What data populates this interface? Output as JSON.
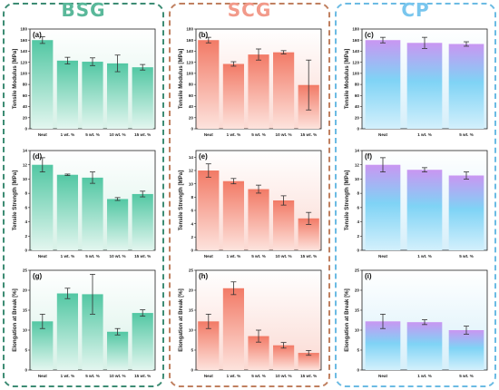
{
  "colors": {
    "bsg_bar_top": "#52c7a3",
    "bsg_bar_bottom": "#e3f6ef",
    "bsg_panel": "#d7f1e7",
    "bsg_frame": "#3d8c74",
    "bsg_title": "#5ab89a",
    "scg_bar_top": "#f27a66",
    "scg_bar_bottom": "#fde3dd",
    "scg_panel": "#fbd9d2",
    "scg_frame": "#c08060",
    "scg_title": "#f29a8a",
    "cp_bar_top": "#c996f2",
    "cp_bar_mid": "#7fd3f5",
    "cp_bar_bottom": "#d3f0fc",
    "cp_panel": "#d6effa",
    "cp_frame": "#6cbbe3",
    "cp_title": "#79c6ee"
  },
  "groups": [
    {
      "key": "bsg",
      "title": "BSG"
    },
    {
      "key": "scg",
      "title": "SCG"
    },
    {
      "key": "cp",
      "title": "CP"
    }
  ],
  "chart_data": [
    {
      "type": "bar",
      "panel_label": "(a)",
      "group": "bsg",
      "row": 0,
      "categories": [
        "Neat",
        "1 wt. %",
        "5 wt. %",
        "10 wt. %",
        "15 wt. %"
      ],
      "values": [
        160,
        123,
        121,
        118,
        111
      ],
      "errors": [
        6,
        6,
        7,
        15,
        5
      ],
      "ylabel": "Tensile Modulus [MPa]",
      "ylim": [
        0,
        180
      ],
      "yticks": [
        0,
        20,
        40,
        60,
        80,
        100,
        120,
        140,
        160,
        180
      ]
    },
    {
      "type": "bar",
      "panel_label": "(b)",
      "group": "scg",
      "row": 0,
      "categories": [
        "Neat",
        "1 wt. %",
        "5 wt. %",
        "10 wt. %",
        "15 wt. %"
      ],
      "values": [
        160,
        117,
        134,
        138,
        79
      ],
      "errors": [
        5,
        4,
        10,
        3,
        45
      ],
      "ylabel": "Tensile Modulus [MPa]",
      "ylim": [
        0,
        180
      ],
      "yticks": [
        0,
        20,
        40,
        60,
        80,
        100,
        120,
        140,
        160,
        180
      ]
    },
    {
      "type": "bar",
      "panel_label": "(c)",
      "group": "cp",
      "row": 0,
      "categories": [
        "Neat",
        "1 wt. %",
        "5 wt. %"
      ],
      "values": [
        160,
        155,
        153
      ],
      "errors": [
        5,
        10,
        4
      ],
      "ylabel": "Tensile Modulus [MPa]",
      "ylim": [
        0,
        180
      ],
      "yticks": [
        0,
        20,
        40,
        60,
        80,
        100,
        120,
        140,
        160,
        180
      ]
    },
    {
      "type": "bar",
      "panel_label": "(d)",
      "group": "bsg",
      "row": 1,
      "categories": [
        "Neat",
        "1 wt. %",
        "5 wt. %",
        "10 wt. %",
        "15 wt. %"
      ],
      "values": [
        12.0,
        10.6,
        10.2,
        7.2,
        7.9
      ],
      "errors": [
        1.0,
        0.1,
        0.8,
        0.2,
        0.4
      ],
      "ylabel": "Tensile Strength [MPa]",
      "ylim": [
        0,
        14
      ],
      "yticks": [
        0,
        2,
        4,
        6,
        8,
        10,
        12,
        14
      ]
    },
    {
      "type": "bar",
      "panel_label": "(e)",
      "group": "scg",
      "row": 1,
      "categories": [
        "Neat",
        "1 wt. %",
        "5 wt. %",
        "10 wt. %",
        "15 wt. %"
      ],
      "values": [
        12.0,
        10.4,
        9.2,
        7.5,
        4.8
      ],
      "errors": [
        1.0,
        0.4,
        0.6,
        0.7,
        0.9
      ],
      "ylabel": "Tensile Strength [MPa]",
      "ylim": [
        0,
        15
      ],
      "yticks": [
        0,
        2,
        4,
        6,
        8,
        10,
        12,
        14
      ]
    },
    {
      "type": "bar",
      "panel_label": "(f)",
      "group": "cp",
      "row": 1,
      "categories": [
        "Neat",
        "1 wt. %",
        "5 wt. %"
      ],
      "values": [
        12.0,
        11.3,
        10.5
      ],
      "errors": [
        1.0,
        0.3,
        0.5
      ],
      "ylabel": "Tensile Strength [MPa]",
      "ylim": [
        0,
        14
      ],
      "yticks": [
        0,
        2,
        4,
        6,
        8,
        10,
        12,
        14
      ]
    },
    {
      "type": "bar",
      "panel_label": "(g)",
      "group": "bsg",
      "row": 2,
      "categories": [
        "Neat",
        "1 wt. %",
        "5 wt. %",
        "10 wt. %",
        "15 wt. %"
      ],
      "values": [
        12.2,
        19.2,
        19.0,
        9.6,
        14.3
      ],
      "errors": [
        1.8,
        1.3,
        5.0,
        0.8,
        0.8
      ],
      "ylabel": "Elongation at Break [%]",
      "ylim": [
        0,
        25
      ],
      "yticks": [
        0,
        5,
        10,
        15,
        20,
        25
      ]
    },
    {
      "type": "bar",
      "panel_label": "(h)",
      "group": "scg",
      "row": 2,
      "categories": [
        "Neat",
        "1 wt. %",
        "5 wt. %",
        "10 wt. %",
        "15 wt. %"
      ],
      "values": [
        12.2,
        20.5,
        8.5,
        6.2,
        4.3
      ],
      "errors": [
        1.8,
        1.6,
        1.5,
        0.7,
        0.6
      ],
      "ylabel": "Elongation at Break [%]",
      "ylim": [
        0,
        25
      ],
      "yticks": [
        0,
        5,
        10,
        15,
        20,
        25
      ]
    },
    {
      "type": "bar",
      "panel_label": "(i)",
      "group": "cp",
      "row": 2,
      "categories": [
        "Neat",
        "1 wt. %",
        "5 wt. %"
      ],
      "values": [
        12.2,
        12.0,
        10.0
      ],
      "errors": [
        1.8,
        0.6,
        1.0
      ],
      "ylabel": "Elongation at Break [%]",
      "ylim": [
        0,
        25
      ],
      "yticks": [
        0,
        5,
        10,
        15,
        20,
        25
      ]
    }
  ]
}
